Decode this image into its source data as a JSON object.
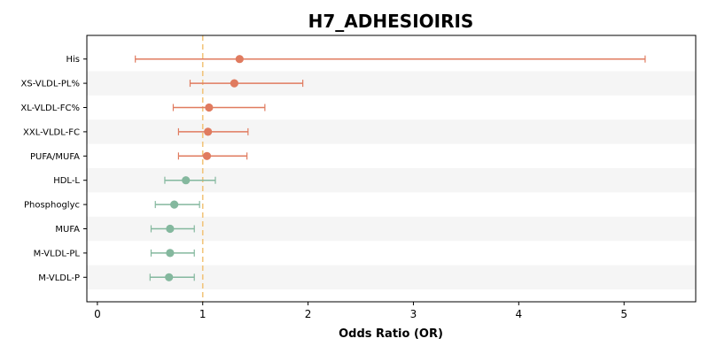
{
  "chart_data": {
    "type": "scatter",
    "subtype": "forest-plot",
    "title": "H7_ADHESIOIRIS",
    "xlabel": "Odds Ratio (OR)",
    "ylabel": "",
    "xlim": [
      -0.1,
      5.68
    ],
    "xticks": [
      0,
      1,
      2,
      3,
      4,
      5
    ],
    "reference_line": 1,
    "reference_line_color": "#f2c57c",
    "grid": false,
    "row_shading_color": "#f5f5f5",
    "colors": {
      "risk": "#e07b5f",
      "protective": "#84b89e"
    },
    "categories": [
      "His",
      "XS-VLDL-PL%",
      "XL-VLDL-FC%",
      "XXL-VLDL-FC",
      "PUFA/MUFA",
      "HDL-L",
      "Phosphoglyc",
      "MUFA",
      "M-VLDL-PL",
      "M-VLDL-P"
    ],
    "or": [
      1.35,
      1.3,
      1.06,
      1.05,
      1.04,
      0.84,
      0.73,
      0.69,
      0.69,
      0.68
    ],
    "ci_low": [
      0.36,
      0.88,
      0.72,
      0.77,
      0.77,
      0.64,
      0.55,
      0.51,
      0.51,
      0.5
    ],
    "ci_high": [
      5.2,
      1.95,
      1.59,
      1.43,
      1.42,
      1.12,
      0.97,
      0.92,
      0.92,
      0.92
    ]
  }
}
